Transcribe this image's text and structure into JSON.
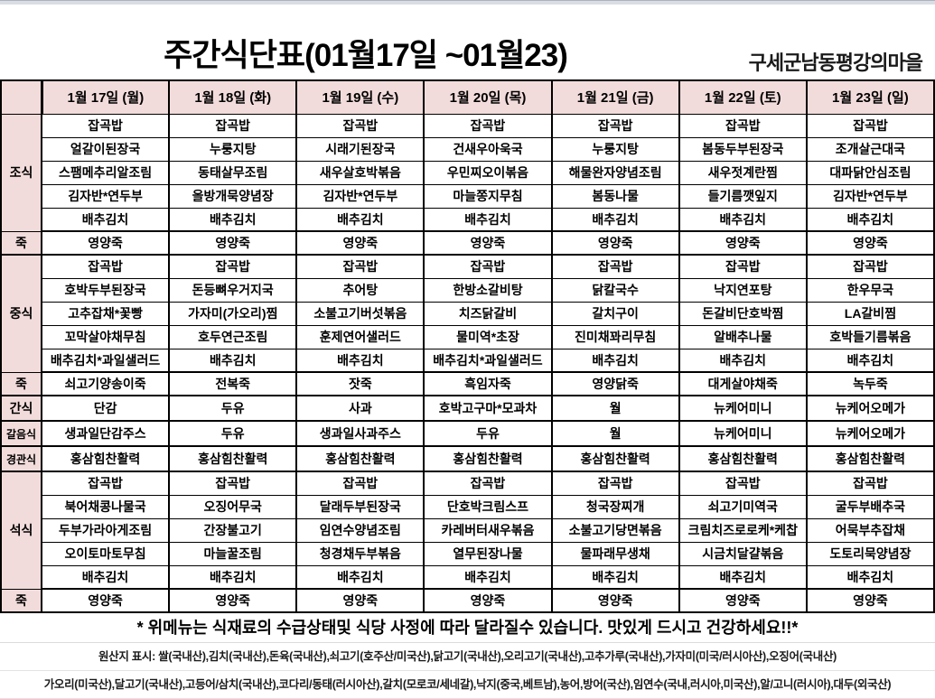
{
  "colors": {
    "pink": "#f2dcdb",
    "blue": "#0070c0",
    "red": "#ff0000",
    "black": "#000000"
  },
  "header": {
    "title": "주간식단표(01월17일 ~01월23)",
    "organization": "구세군남동평강의마을"
  },
  "day_headers": [
    {
      "label": "1월 17일 (월)",
      "color": "black"
    },
    {
      "label": "1월 18일 (화)",
      "color": "black"
    },
    {
      "label": "1월 19일 (수)",
      "color": "black"
    },
    {
      "label": "1월 20일 (목)",
      "color": "black"
    },
    {
      "label": "1월 21일 (금)",
      "color": "black"
    },
    {
      "label": "1월 22일 (토)",
      "color": "blue"
    },
    {
      "label": "1월 23일 (일)",
      "color": "red"
    }
  ],
  "sections": [
    {
      "label": "조식",
      "color": "black",
      "kind": "meal",
      "rows": [
        [
          "잡곡밥",
          "잡곡밥",
          "잡곡밥",
          "잡곡밥",
          "잡곡밥",
          "잡곡밥",
          "잡곡밥"
        ],
        [
          "얼갈이된장국",
          "누룽지탕",
          "시래기된장국",
          "건새우아욱국",
          "누룽지탕",
          "봄동두부된장국",
          "조개살근대국"
        ],
        [
          "스팸메추리알조림",
          "동태살무조림",
          "새우살호박볶음",
          "우민찌오이볶음",
          "해물완자양념조림",
          "새우젓계란찜",
          "대파닭안심조림"
        ],
        [
          "김자반*연두부",
          "올방개묵양념장",
          "김자반*연두부",
          "마늘쫑지무침",
          "봄동나물",
          "들기름깻잎지",
          "김자반*연두부"
        ],
        [
          "배추김치",
          "배추김치",
          "배추김치",
          "배추김치",
          "배추김치",
          "배추김치",
          "배추김치"
        ]
      ]
    },
    {
      "label": "죽",
      "color": "blue",
      "kind": "porridge",
      "rows": [
        [
          "영양죽",
          "영양죽",
          "영양죽",
          "영양죽",
          "영양죽",
          "영양죽",
          "영양죽"
        ]
      ]
    },
    {
      "label": "중식",
      "color": "black",
      "kind": "meal",
      "rows": [
        [
          "잡곡밥",
          "잡곡밥",
          "잡곡밥",
          "잡곡밥",
          "잡곡밥",
          "잡곡밥",
          "잡곡밥"
        ],
        [
          "호박두부된장국",
          "돈등뼈우거지국",
          "추어탕",
          "한방소갈비탕",
          "닭칼국수",
          "낙지연포탕",
          "한우무국"
        ],
        [
          "고추잡채*꽃빵",
          "가자미(가오리)찜",
          "소불고기버섯볶음",
          "치즈닭갈비",
          "갈치구이",
          "돈갈비단호박찜",
          "LA갈비찜"
        ],
        [
          "꼬막살야채무침",
          "호두연근조림",
          "훈제연어샐러드",
          "물미역*초장",
          "진미채꽈리무침",
          "알배추나물",
          "호박들기름볶음"
        ],
        [
          "배추김치*과일샐러드",
          "배추김치",
          "배추김치",
          "배추김치*과일샐러드",
          "배추김치",
          "배추김치",
          "배추김치"
        ]
      ]
    },
    {
      "label": "죽",
      "color": "blue",
      "kind": "porridge",
      "rows": [
        [
          "쇠고기양송이죽",
          "전복죽",
          "잣죽",
          "흑임자죽",
          "영양닭죽",
          "대게살야채죽",
          "녹두죽"
        ]
      ]
    },
    {
      "label": "간식",
      "color": "red",
      "kind": "snack",
      "rows": [
        [
          "단감",
          "두유",
          "사과",
          "호박고구마*모과차",
          "월",
          "뉴케어미니",
          "뉴케어오메가"
        ]
      ]
    },
    {
      "label": "갈음식",
      "color": "red",
      "kind": "snack",
      "rows": [
        [
          "생과일단감주스",
          "두유",
          "생과일사과주스",
          "두유",
          "월",
          "뉴케어미니",
          "뉴케어오메가"
        ]
      ]
    },
    {
      "label": "경관식",
      "color": "red",
      "kind": "snack",
      "rows": [
        [
          "홍삼힘찬활력",
          "홍삼힘찬활력",
          "홍삼힘찬활력",
          "홍삼힘찬활력",
          "홍삼힘찬활력",
          "홍삼힘찬활력",
          "홍삼힘찬활력"
        ]
      ]
    },
    {
      "label": "석식",
      "color": "black",
      "kind": "meal",
      "rows": [
        [
          "잡곡밥",
          "잡곡밥",
          "잡곡밥",
          "잡곡밥",
          "잡곡밥",
          "잡곡밥",
          "잡곡밥"
        ],
        [
          "북어채콩나물국",
          "오징어무국",
          "달래두부된장국",
          "단호박크림스프",
          "청국장찌개",
          "쇠고기미역국",
          "굴두부배추국"
        ],
        [
          "두부가라아게조림",
          "간장불고기",
          "임연수양념조림",
          "카레버터새우볶음",
          "소불고기당면볶음",
          "크림치즈로로케*케찹",
          "어묵부추잡채"
        ],
        [
          "오이토마토무침",
          "마늘꿀조림",
          "청경채두부볶음",
          "열무된장나물",
          "물파래무생채",
          "시금치달걀볶음",
          "도토리묵양념장"
        ],
        [
          "배추김치",
          "배추김치",
          "배추김치",
          "배추김치",
          "배추김치",
          "배추김치",
          "배추김치"
        ]
      ]
    },
    {
      "label": "죽",
      "color": "blue",
      "kind": "porridge",
      "rows": [
        [
          "영양죽",
          "영양죽",
          "영양죽",
          "영양죽",
          "영양죽",
          "영양죽",
          "영양죽"
        ]
      ]
    }
  ],
  "footer": {
    "notice": "* 위메뉴는 식재료의 수급상태및 식당 사정에 따라 달라질수 있습니다. 맛있게 드시고 건강하세요!!*",
    "origin_line1": "원산지 표시: 쌀(국내산),김치(국내산),돈육(국내산),쇠고기(호주산/미국산),닭고기(국내산),오리고기(국내산),고추가루(국내산),가자미(미국/러시아산),오징어(국내산)",
    "origin_line2": "가오리(미국산),달고기(국내산),고등어/삼치(국내산),코다리/동태(러시아산),갈치(모로코/세네갈),낙지(중국,베트남),농어,방어(국산),임연수(국내,러시아,미국산),알/고니(러시아),대두(외국산)"
  }
}
